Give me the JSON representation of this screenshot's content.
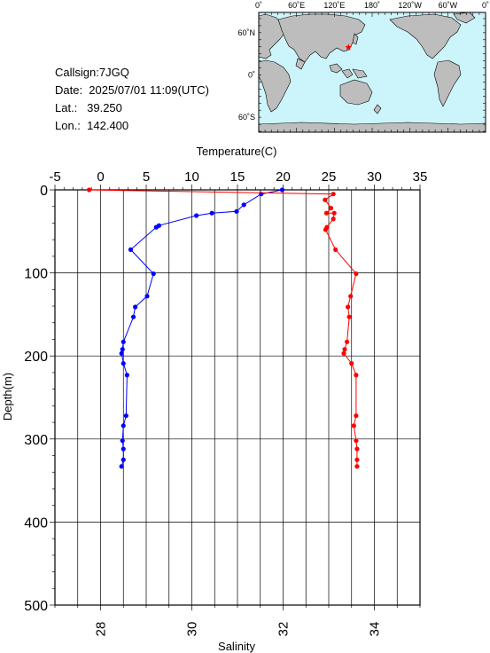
{
  "info": {
    "callsign": "Callsign:7JGQ",
    "date": "Date:  2025/07/01 11:09(UTC)",
    "lat": "Lat.:   39.250",
    "lon": "Lon.:  142.400"
  },
  "map": {
    "top_labels": [
      "0˚",
      "60˚E",
      "120˚E",
      "180˚",
      "120˚W",
      "60˚W",
      "0˚"
    ],
    "left_labels": [
      "60˚N",
      "0˚",
      "60˚S"
    ],
    "station": {
      "lon": 142.4,
      "lat": 39.25
    },
    "colors": {
      "ocean": "#ccf5fb",
      "land": "#bdbdbd",
      "marker": "#ff0000"
    }
  },
  "chart_data": {
    "type": "line",
    "xlabel_top": "Temperature(C)",
    "xlabel_bottom": "Salinity",
    "ylabel": "Depth(m)",
    "temperature_axis": {
      "min": -5,
      "max": 35,
      "ticks": [
        "-5",
        "0",
        "5",
        "10",
        "15",
        "20",
        "25",
        "30",
        "35"
      ]
    },
    "salinity_axis": {
      "min": 27,
      "max": 35,
      "ticks": [
        "28",
        "30",
        "32",
        "34"
      ]
    },
    "depth_axis": {
      "min": 0,
      "max": 500,
      "ticks": [
        "0",
        "100",
        "200",
        "300",
        "400",
        "500"
      ]
    },
    "grid": true,
    "series": [
      {
        "color": "#0000ff",
        "axis": "temperature",
        "points": [
          [
            19.9,
            0
          ],
          [
            17.6,
            5
          ],
          [
            15.7,
            18
          ],
          [
            14.9,
            26
          ],
          [
            12.2,
            28
          ],
          [
            10.5,
            31
          ],
          [
            6.4,
            43
          ],
          [
            6.1,
            45
          ],
          [
            3.3,
            72
          ],
          [
            5.8,
            101
          ],
          [
            5.1,
            128
          ],
          [
            3.8,
            141
          ],
          [
            3.6,
            153
          ],
          [
            2.5,
            183
          ],
          [
            2.4,
            192
          ],
          [
            2.3,
            197
          ],
          [
            2.5,
            209
          ],
          [
            2.9,
            223
          ],
          [
            2.8,
            272
          ],
          [
            2.5,
            284
          ],
          [
            2.4,
            302
          ],
          [
            2.5,
            312
          ],
          [
            2.5,
            325
          ],
          [
            2.3,
            333
          ]
        ]
      },
      {
        "color": "#ff0000",
        "axis": "salinity",
        "points": [
          [
            27.75,
            0
          ],
          [
            33.1,
            5
          ],
          [
            32.92,
            12
          ],
          [
            33.05,
            22
          ],
          [
            32.95,
            28
          ],
          [
            33.12,
            28
          ],
          [
            33.1,
            35
          ],
          [
            32.96,
            45
          ],
          [
            32.93,
            48
          ],
          [
            33.15,
            72
          ],
          [
            33.6,
            101
          ],
          [
            33.48,
            128
          ],
          [
            33.42,
            141
          ],
          [
            33.45,
            153
          ],
          [
            33.4,
            183
          ],
          [
            33.35,
            192
          ],
          [
            33.33,
            197
          ],
          [
            33.5,
            209
          ],
          [
            33.6,
            223
          ],
          [
            33.6,
            272
          ],
          [
            33.55,
            284
          ],
          [
            33.6,
            302
          ],
          [
            33.62,
            312
          ],
          [
            33.62,
            325
          ],
          [
            33.62,
            333
          ]
        ]
      }
    ]
  }
}
